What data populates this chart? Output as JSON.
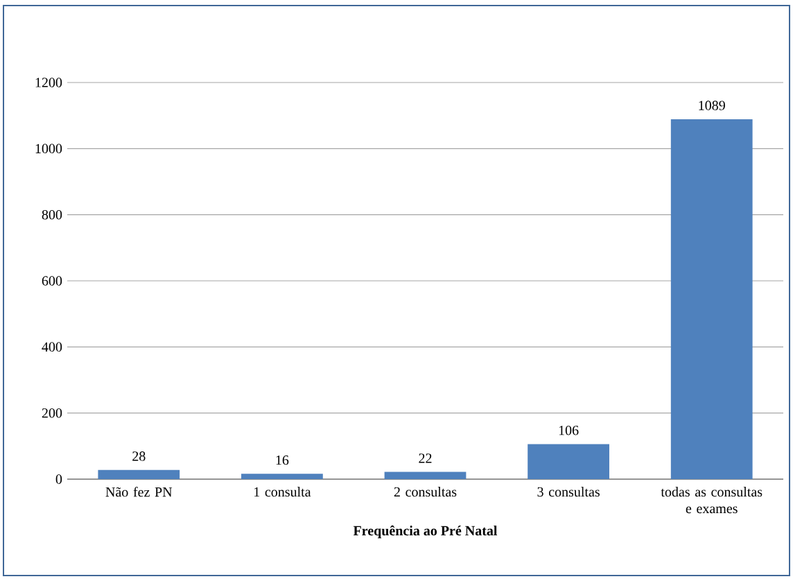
{
  "chart_data": {
    "type": "bar",
    "xlabel": "Frequência ao Pré Natal",
    "categories": [
      "Não fez PN",
      "1 consulta",
      "2 consultas",
      "3 consultas",
      "todas as consultas e exames"
    ],
    "values": [
      28,
      16,
      22,
      106,
      1089
    ],
    "color": "#4f81bd",
    "ylim": [
      0,
      1200
    ],
    "yticks": [
      0,
      200,
      400,
      600,
      800,
      1000,
      1200
    ],
    "grid": "y",
    "data_labels": true
  }
}
